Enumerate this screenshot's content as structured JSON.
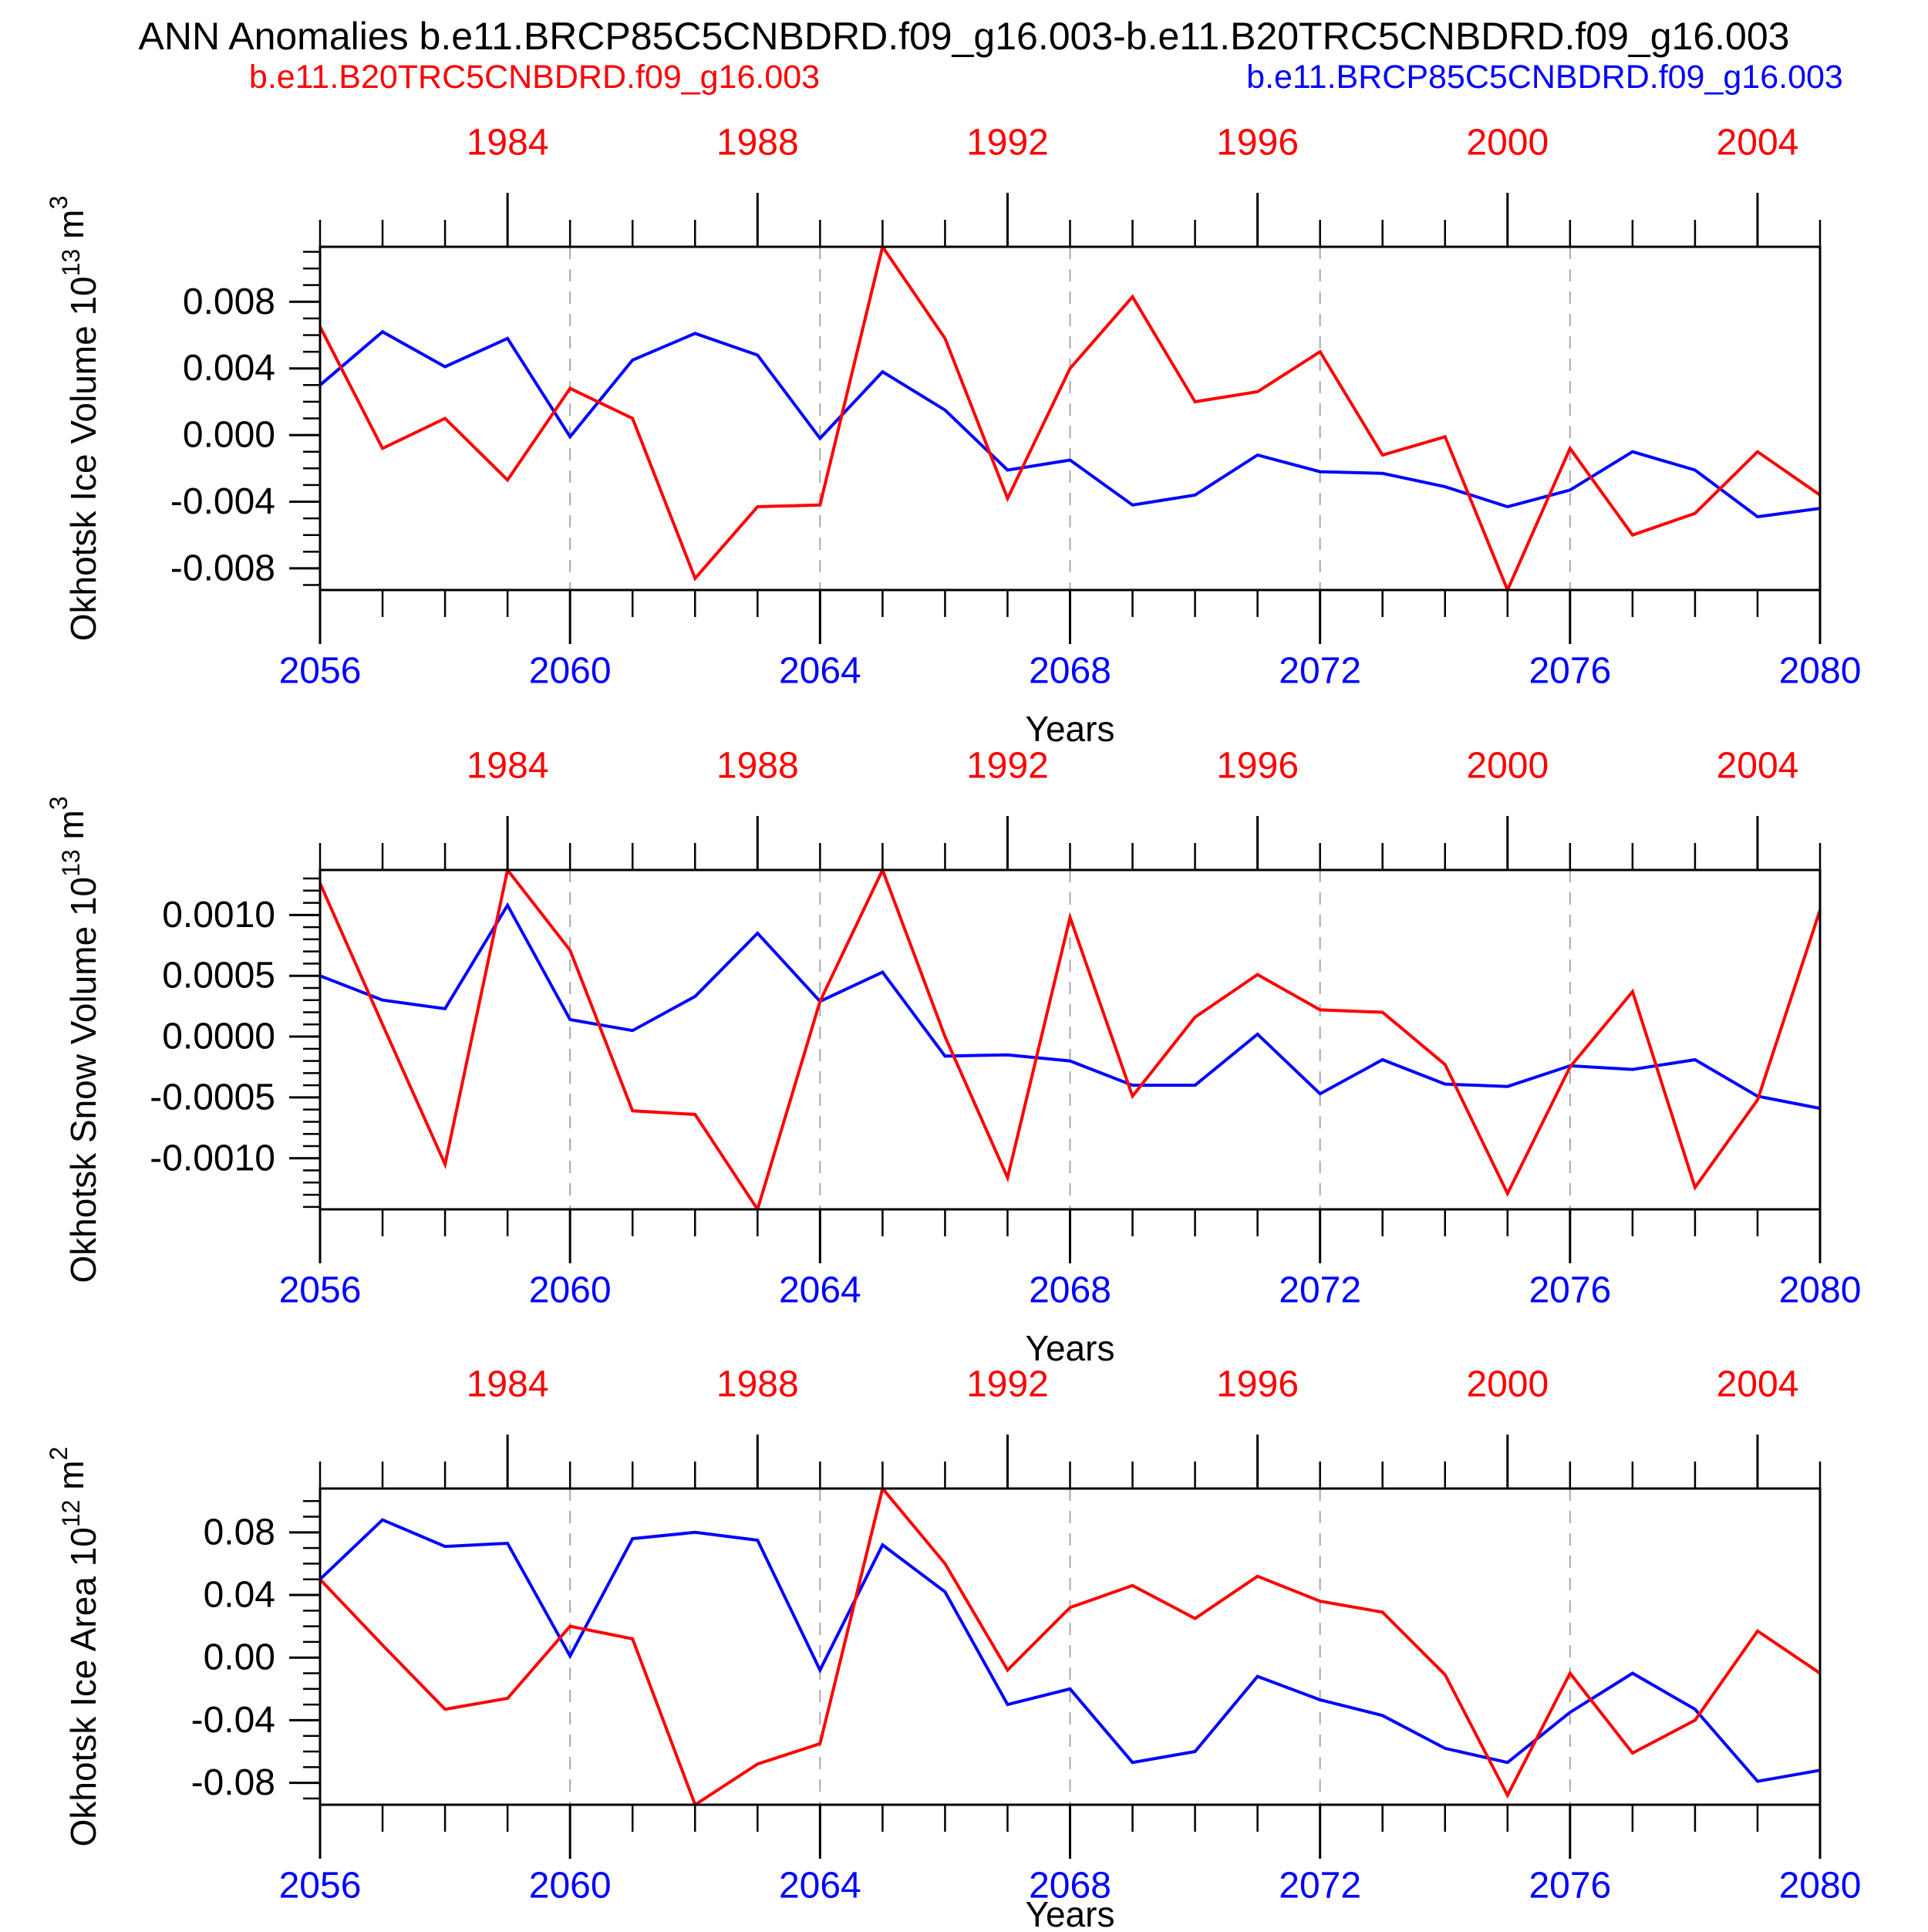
{
  "title": "ANN Anomalies b.e11.BRCP85C5CNBDRD.f09_g16.003-b.e11.B20TRC5CNBDRD.f09_g16.003",
  "legend": {
    "red_label": "b.e11.B20TRC5CNBDRD.f09_g16.003",
    "blue_label": "b.e11.BRCP85C5CNBDRD.f09_g16.003"
  },
  "colors": {
    "red": "#ff0000",
    "blue": "#0000ff",
    "axis": "#000000",
    "grid": "#a8a8a8"
  },
  "axes": {
    "xlabel": "Years",
    "top_axis_color": "red",
    "bottom_axis_color": "blue",
    "top_tick_years": [
      1984,
      1988,
      1992,
      1996,
      2000,
      2004
    ],
    "bottom_tick_years": [
      2056,
      2060,
      2064,
      2068,
      2072,
      2076,
      2080
    ],
    "grid_years": [
      2060,
      2064,
      2068,
      2072,
      2076
    ],
    "years_obs": [
      1981,
      1982,
      1983,
      1984,
      1985,
      1986,
      1987,
      1988,
      1989,
      1990,
      1991,
      1992,
      1993,
      1994,
      1995,
      1996,
      1997,
      1998,
      1999,
      2000,
      2001,
      2002,
      2003,
      2004,
      2005
    ],
    "years_model": [
      2056,
      2057,
      2058,
      2059,
      2060,
      2061,
      2062,
      2063,
      2064,
      2065,
      2066,
      2067,
      2068,
      2069,
      2070,
      2071,
      2072,
      2073,
      2074,
      2075,
      2076,
      2077,
      2078,
      2079,
      2080
    ]
  },
  "chart_data": [
    {
      "type": "line",
      "key": "ice-volume",
      "ylabel_segments": [
        {
          "t": "Okhotsk Ice Volume 10"
        },
        {
          "t": "13",
          "sup": true
        },
        {
          "t": " m"
        },
        {
          "t": "3",
          "sup": true
        }
      ],
      "ylim": [
        -0.0093,
        0.0113
      ],
      "minor_step": 0.001,
      "yticks": [
        {
          "v": 0.008,
          "label": "0.008"
        },
        {
          "v": 0.004,
          "label": "0.004"
        },
        {
          "v": 0.0,
          "label": "0.000"
        },
        {
          "v": -0.004,
          "label": "-0.004"
        },
        {
          "v": -0.008,
          "label": "-0.008"
        }
      ],
      "series": [
        {
          "name": "b.e11.B20TRC5CNBDRD.f09_g16.003",
          "color_key": "red",
          "x_axis": "top",
          "values": [
            0.0065,
            -0.0008,
            0.001,
            -0.0027,
            0.0028,
            0.001,
            -0.0086,
            -0.0043,
            -0.0042,
            0.0113,
            0.0058,
            -0.0038,
            0.004,
            0.0083,
            0.002,
            0.0026,
            0.005,
            -0.0012,
            -0.0001,
            -0.0093,
            -0.0008,
            -0.006,
            -0.0047,
            -0.001,
            -0.0036
          ]
        },
        {
          "name": "b.e11.BRCP85C5CNBDRD.f09_g16.003",
          "color_key": "blue",
          "x_axis": "bottom",
          "values": [
            0.003,
            0.0062,
            0.0041,
            0.0058,
            -0.0001,
            0.0045,
            0.0061,
            0.0048,
            -0.0002,
            0.0038,
            0.0015,
            -0.0021,
            -0.0015,
            -0.0042,
            -0.0036,
            -0.0012,
            -0.0022,
            -0.0023,
            -0.0031,
            -0.0043,
            -0.0033,
            -0.001,
            -0.0021,
            -0.0049,
            -0.0044
          ]
        }
      ]
    },
    {
      "type": "line",
      "key": "snow-volume",
      "ylabel_segments": [
        {
          "t": "Okhotsk Snow Volume 10"
        },
        {
          "t": "13",
          "sup": true
        },
        {
          "t": " m"
        },
        {
          "t": "3",
          "sup": true
        }
      ],
      "ylim": [
        -0.00142,
        0.00137
      ],
      "minor_step": 0.0001,
      "yticks": [
        {
          "v": 0.001,
          "label": "0.0010"
        },
        {
          "v": 0.0005,
          "label": "0.0005"
        },
        {
          "v": 0.0,
          "label": "0.0000"
        },
        {
          "v": -0.0005,
          "label": "-0.0005"
        },
        {
          "v": -0.001,
          "label": "-0.0010"
        }
      ],
      "series": [
        {
          "name": "b.e11.B20TRC5CNBDRD.f09_g16.003",
          "color_key": "red",
          "x_axis": "top",
          "values": [
            0.00126,
            0.0001,
            -0.00105,
            0.00137,
            0.00071,
            -0.00061,
            -0.00064,
            -0.00142,
            0.00029,
            0.00137,
            0.0,
            -0.00116,
            0.00098,
            -0.00049,
            0.00016,
            0.00051,
            0.00022,
            0.0002,
            -0.00023,
            -0.00129,
            -0.00025,
            0.00037,
            -0.00124,
            -0.00052,
            0.00104
          ]
        },
        {
          "name": "b.e11.BRCP85C5CNBDRD.f09_g16.003",
          "color_key": "blue",
          "x_axis": "bottom",
          "values": [
            0.0005,
            0.0003,
            0.00023,
            0.00108,
            0.00014,
            5e-05,
            0.00033,
            0.00085,
            0.00029,
            0.00053,
            -0.00016,
            -0.00015,
            -0.0002,
            -0.0004,
            -0.0004,
            2e-05,
            -0.00047,
            -0.00019,
            -0.00039,
            -0.00041,
            -0.00024,
            -0.00027,
            -0.00019,
            -0.00049,
            -0.00059
          ]
        }
      ]
    },
    {
      "type": "line",
      "key": "ice-area",
      "ylabel_segments": [
        {
          "t": "Okhotsk Ice Area 10"
        },
        {
          "t": "12",
          "sup": true
        },
        {
          "t": " m"
        },
        {
          "t": "2",
          "sup": true
        }
      ],
      "ylim": [
        -0.094,
        0.108
      ],
      "minor_step": 0.01,
      "yticks": [
        {
          "v": 0.08,
          "label": "0.08"
        },
        {
          "v": 0.04,
          "label": "0.04"
        },
        {
          "v": 0.0,
          "label": "0.00"
        },
        {
          "v": -0.04,
          "label": "-0.04"
        },
        {
          "v": -0.08,
          "label": "-0.08"
        }
      ],
      "series": [
        {
          "name": "b.e11.B20TRC5CNBDRD.f09_g16.003",
          "color_key": "red",
          "x_axis": "top",
          "values": [
            0.05,
            0.008,
            -0.033,
            -0.026,
            0.02,
            0.012,
            -0.094,
            -0.068,
            -0.055,
            0.108,
            0.06,
            -0.008,
            0.032,
            0.046,
            0.025,
            0.052,
            0.036,
            0.029,
            -0.011,
            -0.088,
            -0.01,
            -0.061,
            -0.04,
            0.017,
            -0.01
          ]
        },
        {
          "name": "b.e11.BRCP85C5CNBDRD.f09_g16.003",
          "color_key": "blue",
          "x_axis": "bottom",
          "values": [
            0.05,
            0.088,
            0.071,
            0.073,
            0.001,
            0.076,
            0.08,
            0.075,
            -0.008,
            0.072,
            0.042,
            -0.03,
            -0.02,
            -0.067,
            -0.06,
            -0.012,
            -0.027,
            -0.037,
            -0.058,
            -0.067,
            -0.035,
            -0.01,
            -0.033,
            -0.079,
            -0.072
          ]
        }
      ]
    }
  ]
}
